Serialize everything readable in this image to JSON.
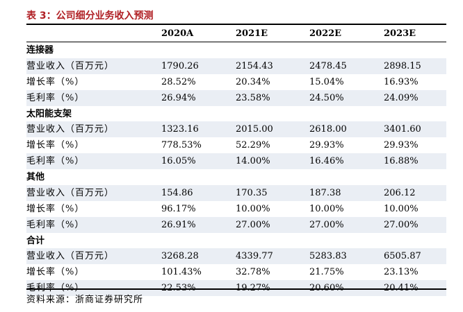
{
  "title": "表 3：公司细分业务收入预测",
  "columns": [
    "2020A",
    "2021E",
    "2022E",
    "2023E"
  ],
  "rows": [
    {
      "type": "section",
      "label": "连接器"
    },
    {
      "type": "data",
      "label": "营业收入（百万元）",
      "values": [
        "1790.26",
        "2154.43",
        "2478.45",
        "2898.15"
      ]
    },
    {
      "type": "data",
      "label": "增长率（%）",
      "values": [
        "28.52%",
        "20.34%",
        "15.04%",
        "16.93%"
      ]
    },
    {
      "type": "data",
      "label": "毛利率（%）",
      "values": [
        "26.94%",
        "23.58%",
        "24.50%",
        "24.09%"
      ]
    },
    {
      "type": "section",
      "label": "太阳能支架"
    },
    {
      "type": "data",
      "label": "营业收入（百万元）",
      "values": [
        "1323.16",
        "2015.00",
        "2618.00",
        "3401.60"
      ]
    },
    {
      "type": "data",
      "label": "增长率（%）",
      "values": [
        "778.53%",
        "52.29%",
        "29.93%",
        "29.93%"
      ]
    },
    {
      "type": "data",
      "label": "毛利率（%）",
      "values": [
        "16.05%",
        "14.00%",
        "16.46%",
        "16.88%"
      ]
    },
    {
      "type": "section",
      "label": "其他"
    },
    {
      "type": "data",
      "label": "营业收入（百万元）",
      "values": [
        "154.86",
        "170.35",
        "187.38",
        "206.12"
      ]
    },
    {
      "type": "data",
      "label": "增长率（%）",
      "values": [
        "96.17%",
        "10.00%",
        "10.00%",
        "10.00%"
      ]
    },
    {
      "type": "data",
      "label": "毛利率（%）",
      "values": [
        "26.91%",
        "27.00%",
        "27.00%",
        "27.00%"
      ]
    },
    {
      "type": "section",
      "label": "合计"
    },
    {
      "type": "data",
      "label": "营业收入（百万元）",
      "values": [
        "3268.28",
        "4339.77",
        "5283.83",
        "6505.87"
      ]
    },
    {
      "type": "data",
      "label": "增长率（%）",
      "values": [
        "101.43%",
        "32.78%",
        "21.75%",
        "23.13%"
      ]
    },
    {
      "type": "data",
      "label": "毛利率（%）",
      "values": [
        "22.53%",
        "19.27%",
        "20.60%",
        "20.41%"
      ]
    }
  ],
  "source": "资料来源：浙商证券研究所",
  "colors": {
    "title": "#b01f24",
    "shade": "#eaeef4"
  }
}
